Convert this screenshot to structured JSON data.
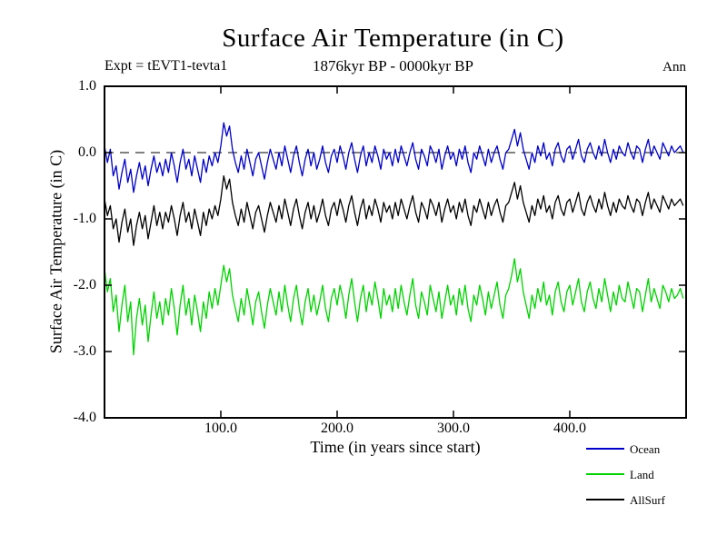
{
  "chart_data": {
    "type": "line",
    "title": "Surface Air Temperature (in C)",
    "subtitle": "1876kyr BP - 0000kyr BP",
    "annotations": {
      "top_left": "Expt = tEVT1-tevta1",
      "top_right": "Ann"
    },
    "xlabel": "Time (in years since start)",
    "ylabel": "Surface Air Temperature (in C)",
    "xlim": [
      0,
      500
    ],
    "ylim": [
      -4.0,
      1.0
    ],
    "xticks": [
      100,
      200,
      300,
      400
    ],
    "xtick_labels": [
      "100.0",
      "200.0",
      "300.0",
      "400.0"
    ],
    "yticks": [
      1.0,
      0.0,
      -1.0,
      -2.0,
      -3.0,
      -4.0
    ],
    "ytick_labels": [
      "1.0",
      "0.0",
      "-1.0",
      "-2.0",
      "-3.0",
      "-4.0"
    ],
    "zero_line_y": 0.0,
    "grid": false,
    "legend_position": "below-right",
    "x_start": 0,
    "x_step": 2.5,
    "series": [
      {
        "name": "Ocean",
        "color": "#0000c8",
        "values": [
          0.1,
          -0.15,
          0.05,
          -0.35,
          -0.2,
          -0.55,
          -0.3,
          -0.1,
          -0.45,
          -0.25,
          -0.6,
          -0.35,
          -0.15,
          -0.4,
          -0.2,
          -0.5,
          -0.25,
          -0.05,
          -0.3,
          -0.15,
          -0.35,
          -0.1,
          -0.3,
          0.0,
          -0.2,
          -0.45,
          -0.15,
          0.05,
          -0.25,
          -0.1,
          -0.35,
          -0.05,
          -0.25,
          -0.45,
          -0.1,
          -0.3,
          -0.05,
          -0.2,
          0.0,
          -0.15,
          0.1,
          0.45,
          0.25,
          0.4,
          0.05,
          -0.15,
          -0.3,
          -0.05,
          -0.25,
          0.05,
          -0.15,
          -0.35,
          -0.1,
          0.0,
          -0.2,
          -0.4,
          -0.15,
          0.05,
          -0.1,
          -0.25,
          0.0,
          -0.2,
          0.1,
          -0.1,
          -0.3,
          -0.05,
          0.1,
          -0.15,
          -0.35,
          -0.1,
          0.05,
          -0.2,
          0.0,
          -0.25,
          -0.1,
          0.1,
          -0.15,
          -0.3,
          -0.05,
          0.05,
          -0.15,
          0.1,
          -0.05,
          -0.25,
          0.0,
          0.15,
          -0.1,
          -0.3,
          -0.05,
          0.1,
          -0.2,
          0.0,
          -0.15,
          0.1,
          -0.05,
          -0.25,
          0.05,
          -0.1,
          0.0,
          -0.2,
          0.05,
          -0.15,
          0.1,
          -0.05,
          -0.2,
          0.0,
          0.15,
          -0.1,
          -0.25,
          0.05,
          -0.05,
          -0.2,
          0.1,
          0.0,
          -0.15,
          0.05,
          -0.25,
          -0.05,
          0.1,
          -0.1,
          0.0,
          -0.2,
          0.05,
          -0.1,
          0.1,
          -0.15,
          -0.3,
          0.0,
          -0.1,
          0.1,
          -0.05,
          -0.2,
          0.05,
          -0.15,
          0.0,
          0.1,
          -0.1,
          -0.25,
          0.0,
          0.05,
          0.2,
          0.35,
          0.1,
          0.3,
          0.05,
          -0.1,
          -0.25,
          0.0,
          -0.15,
          0.1,
          -0.05,
          0.15,
          -0.1,
          0.0,
          -0.2,
          0.05,
          0.15,
          -0.05,
          -0.15,
          0.05,
          0.1,
          -0.1,
          0.05,
          0.2,
          -0.05,
          -0.15,
          0.05,
          0.15,
          0.0,
          -0.1,
          0.1,
          -0.05,
          0.2,
          0.0,
          -0.15,
          0.05,
          -0.1,
          0.1,
          0.0,
          -0.05,
          0.15,
          0.0,
          -0.1,
          0.1,
          0.05,
          -0.15,
          0.05,
          0.2,
          -0.05,
          0.1,
          0.0,
          -0.1,
          0.15,
          0.05,
          -0.05,
          0.1,
          0.0,
          0.05,
          0.1,
          0.0
        ]
      },
      {
        "name": "Land",
        "color": "#00d200",
        "values": [
          -1.75,
          -2.1,
          -1.9,
          -2.4,
          -2.15,
          -2.7,
          -2.3,
          -2.0,
          -2.55,
          -2.25,
          -3.05,
          -2.5,
          -2.2,
          -2.6,
          -2.3,
          -2.85,
          -2.45,
          -2.1,
          -2.5,
          -2.25,
          -2.6,
          -2.2,
          -2.45,
          -2.05,
          -2.35,
          -2.75,
          -2.3,
          -2.0,
          -2.45,
          -2.2,
          -2.6,
          -2.15,
          -2.4,
          -2.7,
          -2.25,
          -2.5,
          -2.1,
          -2.35,
          -2.05,
          -2.3,
          -2.0,
          -1.7,
          -1.95,
          -1.75,
          -2.15,
          -2.35,
          -2.55,
          -2.2,
          -2.45,
          -2.05,
          -2.3,
          -2.6,
          -2.25,
          -2.1,
          -2.4,
          -2.65,
          -2.3,
          -2.05,
          -2.25,
          -2.45,
          -2.1,
          -2.4,
          -2.0,
          -2.3,
          -2.55,
          -2.2,
          -2.0,
          -2.35,
          -2.6,
          -2.25,
          -2.05,
          -2.4,
          -2.15,
          -2.45,
          -2.25,
          -2.0,
          -2.35,
          -2.55,
          -2.2,
          -2.05,
          -2.3,
          -2.0,
          -2.2,
          -2.5,
          -2.15,
          -1.9,
          -2.25,
          -2.55,
          -2.2,
          -2.0,
          -2.4,
          -2.1,
          -2.3,
          -1.95,
          -2.2,
          -2.5,
          -2.05,
          -2.3,
          -2.15,
          -2.4,
          -2.05,
          -2.35,
          -2.0,
          -2.25,
          -2.45,
          -2.15,
          -1.9,
          -2.3,
          -2.5,
          -2.1,
          -2.25,
          -2.45,
          -2.0,
          -2.2,
          -2.4,
          -2.1,
          -2.5,
          -2.25,
          -2.0,
          -2.3,
          -2.15,
          -2.45,
          -2.05,
          -2.3,
          -2.0,
          -2.35,
          -2.55,
          -2.15,
          -2.3,
          -2.0,
          -2.2,
          -2.45,
          -2.1,
          -2.35,
          -2.15,
          -1.95,
          -2.3,
          -2.5,
          -2.15,
          -2.05,
          -1.85,
          -1.6,
          -1.95,
          -1.75,
          -2.1,
          -2.3,
          -2.5,
          -2.15,
          -2.35,
          -2.05,
          -2.25,
          -1.95,
          -2.3,
          -2.15,
          -2.45,
          -2.1,
          -1.95,
          -2.25,
          -2.4,
          -2.1,
          -2.0,
          -2.3,
          -2.1,
          -1.9,
          -2.25,
          -2.4,
          -2.1,
          -1.95,
          -2.2,
          -2.35,
          -2.05,
          -2.25,
          -1.9,
          -2.15,
          -2.4,
          -2.1,
          -2.3,
          -2.0,
          -2.2,
          -2.25,
          -1.95,
          -2.15,
          -2.35,
          -2.05,
          -2.1,
          -2.4,
          -2.15,
          -1.9,
          -2.25,
          -2.05,
          -2.2,
          -2.35,
          -2.0,
          -2.1,
          -2.25,
          -2.05,
          -2.2,
          -2.15,
          -2.05,
          -2.2
        ]
      },
      {
        "name": "AllSurf",
        "color": "#000000",
        "values": [
          -0.7,
          -0.95,
          -0.8,
          -1.15,
          -1.0,
          -1.35,
          -1.05,
          -0.85,
          -1.2,
          -1.0,
          -1.4,
          -1.1,
          -0.9,
          -1.15,
          -0.95,
          -1.3,
          -1.05,
          -0.8,
          -1.1,
          -0.9,
          -1.15,
          -0.9,
          -1.05,
          -0.8,
          -1.0,
          -1.25,
          -0.95,
          -0.75,
          -1.05,
          -0.9,
          -1.15,
          -0.85,
          -1.05,
          -1.25,
          -0.9,
          -1.1,
          -0.85,
          -1.0,
          -0.8,
          -0.95,
          -0.7,
          -0.35,
          -0.55,
          -0.4,
          -0.75,
          -0.95,
          -1.1,
          -0.85,
          -1.05,
          -0.75,
          -0.95,
          -1.15,
          -0.9,
          -0.8,
          -1.0,
          -1.2,
          -0.95,
          -0.75,
          -0.9,
          -1.05,
          -0.8,
          -1.0,
          -0.7,
          -0.9,
          -1.1,
          -0.85,
          -0.7,
          -0.95,
          -1.15,
          -0.9,
          -0.75,
          -1.0,
          -0.8,
          -1.05,
          -0.9,
          -0.7,
          -0.95,
          -1.1,
          -0.85,
          -0.75,
          -0.95,
          -0.7,
          -0.85,
          -1.05,
          -0.8,
          -0.65,
          -0.9,
          -1.1,
          -0.85,
          -0.7,
          -1.0,
          -0.8,
          -0.95,
          -0.7,
          -0.85,
          -1.05,
          -0.75,
          -0.9,
          -0.8,
          -1.0,
          -0.75,
          -0.95,
          -0.7,
          -0.85,
          -1.0,
          -0.8,
          -0.65,
          -0.9,
          -1.05,
          -0.75,
          -0.85,
          -1.0,
          -0.7,
          -0.8,
          -0.95,
          -0.75,
          -1.05,
          -0.85,
          -0.7,
          -0.9,
          -0.8,
          -1.0,
          -0.75,
          -0.9,
          -0.7,
          -0.95,
          -1.1,
          -0.8,
          -0.9,
          -0.7,
          -0.85,
          -1.0,
          -0.75,
          -0.95,
          -0.8,
          -0.7,
          -0.9,
          -1.05,
          -0.8,
          -0.75,
          -0.6,
          -0.45,
          -0.7,
          -0.5,
          -0.75,
          -0.9,
          -1.05,
          -0.8,
          -0.95,
          -0.7,
          -0.85,
          -0.65,
          -0.9,
          -0.8,
          -1.0,
          -0.75,
          -0.65,
          -0.85,
          -0.95,
          -0.75,
          -0.7,
          -0.9,
          -0.75,
          -0.6,
          -0.85,
          -0.95,
          -0.75,
          -0.65,
          -0.8,
          -0.9,
          -0.7,
          -0.85,
          -0.6,
          -0.8,
          -0.95,
          -0.75,
          -0.9,
          -0.7,
          -0.8,
          -0.85,
          -0.65,
          -0.8,
          -0.9,
          -0.7,
          -0.75,
          -0.95,
          -0.75,
          -0.6,
          -0.85,
          -0.7,
          -0.8,
          -0.9,
          -0.65,
          -0.75,
          -0.85,
          -0.7,
          -0.8,
          -0.75,
          -0.7,
          -0.8
        ]
      }
    ]
  }
}
